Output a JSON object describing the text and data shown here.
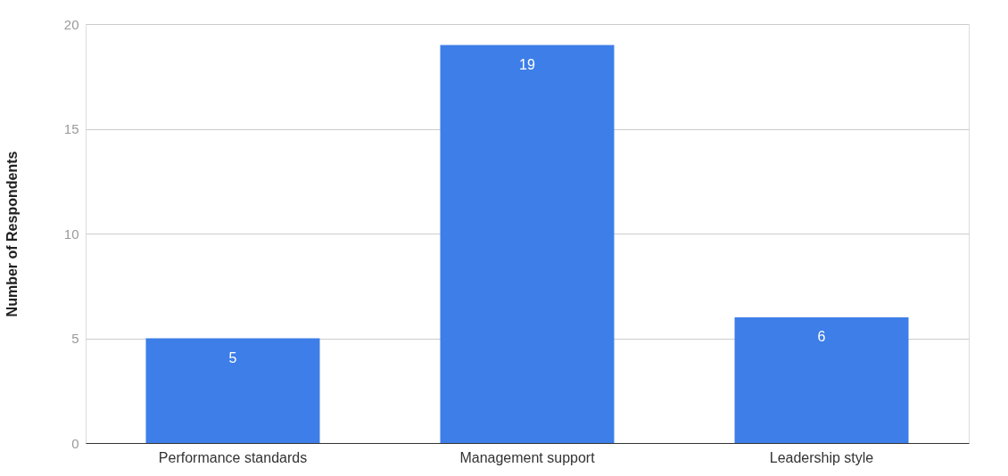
{
  "chart_data": {
    "type": "bar",
    "ylabel": "Number of Respondents",
    "categories": [
      "Performance standards",
      "Management support",
      "Leadership style"
    ],
    "values": [
      5,
      19,
      6
    ],
    "color": "#3d7ee8",
    "ylim": [
      0,
      20
    ],
    "yticks": [
      0,
      5,
      10,
      15,
      20
    ],
    "grid": "y",
    "data_labels": true
  }
}
